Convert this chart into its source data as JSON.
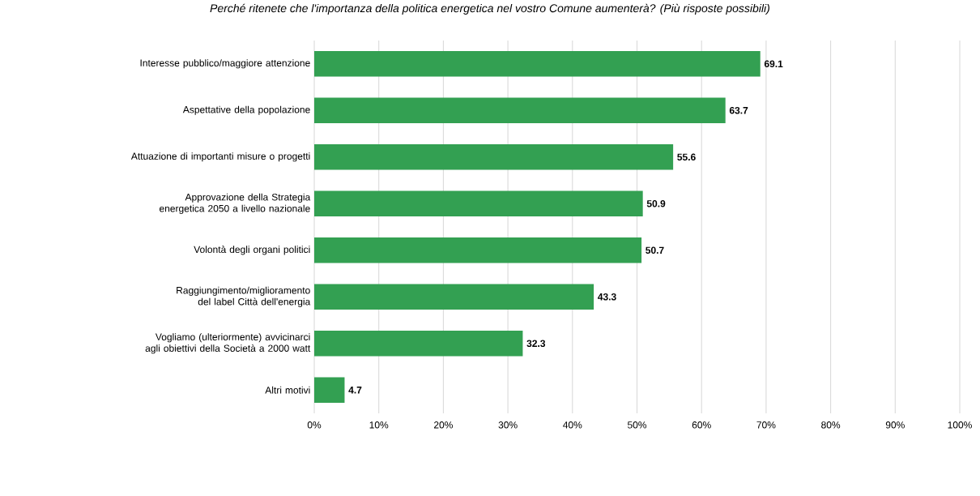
{
  "chart_data": {
    "type": "bar",
    "orientation": "horizontal",
    "title": "Perché ritenete che l'importanza della politica energetica nel vostro Comune aumenterà? (Più risposte possibili)",
    "categories": [
      "Interesse pubblico/maggiore attenzione",
      "Aspettative della popolazione",
      "Attuazione di importanti misure o progetti",
      "Approvazione della Strategia energetica 2050 a livello nazionale",
      "Volontà degli organi politici",
      "Raggiungimento/miglioramento del label Città dell'energia",
      "Vogliamo (ulteriormente) avvicinarci agli obiettivi della Società a 2000 watt",
      "Altri motivi"
    ],
    "values": [
      69.1,
      63.7,
      55.6,
      50.9,
      50.7,
      43.3,
      32.3,
      4.7
    ],
    "color": "#33a052",
    "xlim": [
      0,
      100
    ],
    "xticks": [
      {
        "value": 0,
        "label": "0%"
      },
      {
        "value": 10,
        "label": "10%"
      },
      {
        "value": 20,
        "label": "20%"
      },
      {
        "value": 30,
        "label": "30%"
      },
      {
        "value": 40,
        "label": "40%"
      },
      {
        "value": 50,
        "label": "50%"
      },
      {
        "value": 60,
        "label": "60%"
      },
      {
        "value": 70,
        "label": "70%"
      },
      {
        "value": 80,
        "label": "80%"
      },
      {
        "value": 90,
        "label": "90%"
      },
      {
        "value": 100,
        "label": "100%"
      }
    ],
    "grid": "x",
    "data_labels": true
  }
}
